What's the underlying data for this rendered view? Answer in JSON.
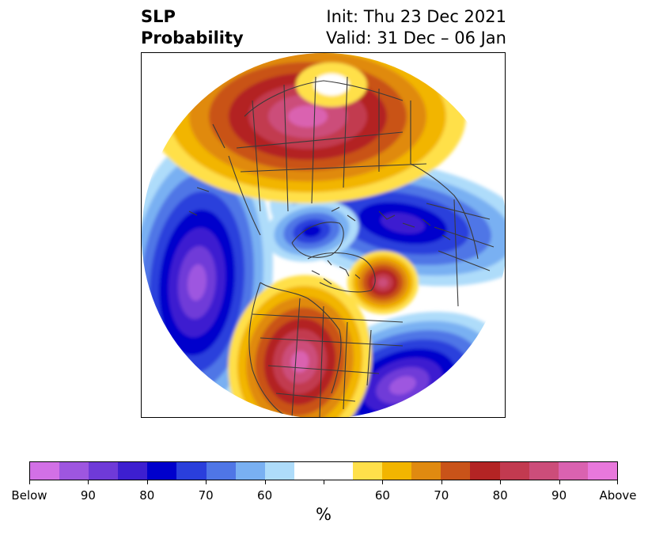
{
  "title": {
    "left_line1": "SLP",
    "left_line2": "Probability",
    "right_line1": "Init: Thu 23 Dec 2021",
    "right_line2": "Valid: 31 Dec – 06 Jan"
  },
  "colorbar": {
    "colors": [
      "#d270e6",
      "#9e56e0",
      "#6f3ad8",
      "#3d1fd0",
      "#0000cc",
      "#2a3fdc",
      "#4f76e6",
      "#79b0f2",
      "#aedcfa",
      "#ffffff",
      "#ffffff",
      "#ffe04a",
      "#f2b500",
      "#e08a10",
      "#c95319",
      "#b32424",
      "#c23a50",
      "#cc4d7a",
      "#da62b0",
      "#e878dc"
    ],
    "tick_labels": [
      "Below",
      "90",
      "80",
      "70",
      "60",
      "",
      "60",
      "70",
      "80",
      "90",
      "Above"
    ],
    "unit": "%"
  },
  "map": {
    "palette_low": [
      "#aedcfa",
      "#79b0f2",
      "#4f76e6",
      "#2a3fdc",
      "#0000cc",
      "#3d1fd0",
      "#6f3ad8",
      "#9e56e0"
    ],
    "palette_high": [
      "#ffe04a",
      "#f2b500",
      "#e08a10",
      "#c95319",
      "#b32424",
      "#c23a50",
      "#cc4d7a",
      "#da62b0"
    ]
  }
}
